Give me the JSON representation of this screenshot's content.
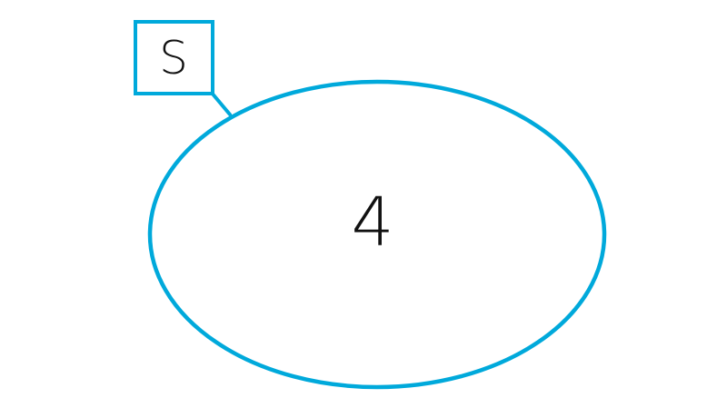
{
  "diagram": {
    "set_label": "S",
    "set_count": "4",
    "colors": {
      "outline": "#00a9db",
      "text": "#111111",
      "background": "#ffffff"
    }
  }
}
